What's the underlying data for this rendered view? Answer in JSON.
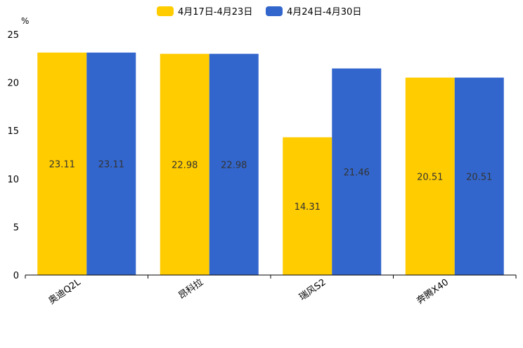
{
  "chart_data": {
    "type": "bar",
    "categories": [
      "奥迪Q2L",
      "昂科拉",
      "瑞风S2",
      "奔腾X40"
    ],
    "series": [
      {
        "name": "4月17日-4月23日",
        "color": "#FFCC00",
        "values": [
          23.11,
          22.98,
          14.31,
          20.51
        ]
      },
      {
        "name": "4月24日-4月30日",
        "color": "#3366CC",
        "values": [
          23.11,
          22.98,
          21.46,
          20.51
        ]
      }
    ],
    "value_labels": [
      [
        "23.11",
        "22.98",
        "14.31",
        "20.51"
      ],
      [
        "23.11",
        "22.98",
        "21.46",
        "20.51"
      ]
    ],
    "unit": "%",
    "yticks": [
      0,
      5,
      10,
      15,
      20,
      25
    ],
    "ylim": [
      0,
      25
    ],
    "legend_position": "top-center",
    "grid": false
  }
}
